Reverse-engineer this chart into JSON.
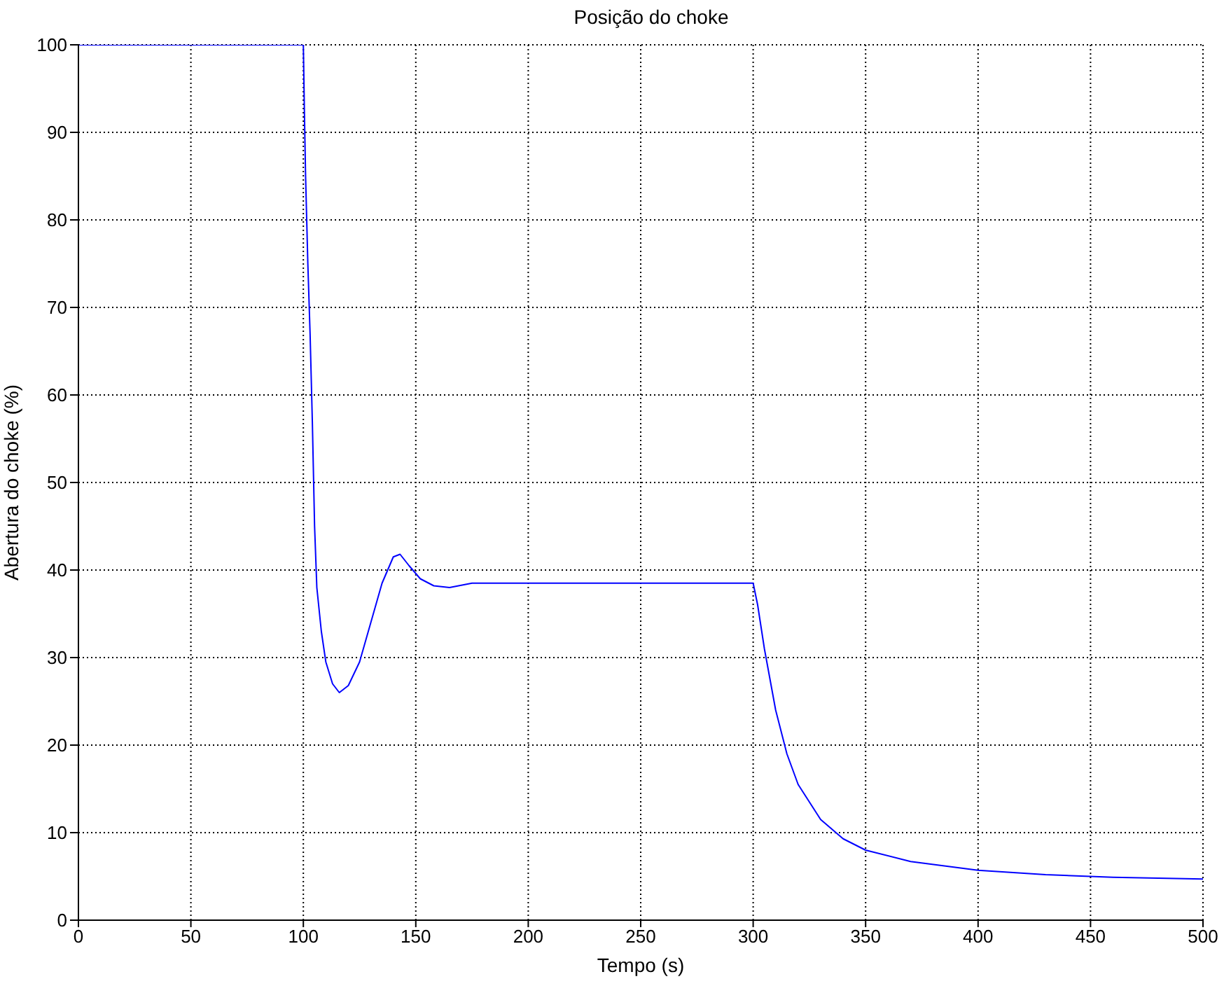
{
  "chart_data": {
    "type": "line",
    "title": "Posição do choke",
    "xlabel": "Tempo (s)",
    "ylabel": "Abertura do choke (%)",
    "xlim": [
      0,
      500
    ],
    "xticks": [
      0,
      50,
      100,
      150,
      200,
      250,
      300,
      350,
      400,
      450,
      500
    ],
    "ylim": [
      0,
      100
    ],
    "yticks": [
      0,
      10,
      20,
      30,
      40,
      50,
      60,
      70,
      80,
      90,
      100
    ],
    "grid": true,
    "marker": "none",
    "line_style": "solid",
    "x": [
      0,
      100,
      100.5,
      101,
      102,
      103,
      104,
      105,
      106,
      108,
      110,
      113,
      116,
      120,
      125,
      130,
      135,
      140,
      143,
      147,
      152,
      158,
      165,
      175,
      300,
      302,
      305,
      310,
      315,
      320,
      330,
      340,
      350,
      370,
      400,
      430,
      460,
      500
    ],
    "series": [
      {
        "color": "#0000ff",
        "values": [
          100,
          100,
          92,
          85,
          75,
          67,
          57,
          45,
          38,
          33,
          29.5,
          27,
          26,
          26.8,
          29.5,
          34,
          38.5,
          41.5,
          41.8,
          40.5,
          39,
          38.2,
          38,
          38.5,
          38.5,
          36,
          31,
          24,
          19,
          15.5,
          11.5,
          9.3,
          8,
          6.7,
          5.7,
          5.2,
          4.9,
          4.7
        ]
      }
    ]
  }
}
